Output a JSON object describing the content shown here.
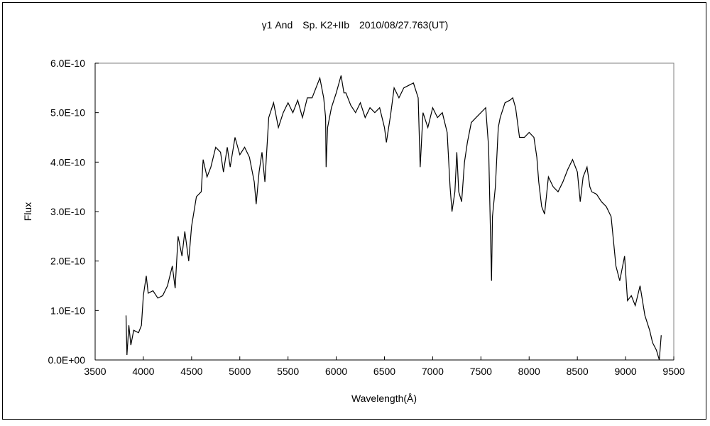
{
  "chart_data": {
    "type": "line",
    "title": "γ1 And　Sp. K2+IIb　2010/08/27.763(UT)",
    "xlabel": "Wavelength(Å)",
    "ylabel": "Flux",
    "xlim": [
      3500,
      9500
    ],
    "ylim": [
      0,
      6e-10
    ],
    "xticks": [
      3500,
      4000,
      4500,
      5000,
      5500,
      6000,
      6500,
      7000,
      7500,
      8000,
      8500,
      9000,
      9500
    ],
    "xtick_labels": [
      "3500",
      "4000",
      "4500",
      "5000",
      "5500",
      "6000",
      "6500",
      "7000",
      "7500",
      "8000",
      "8500",
      "9000",
      "9500"
    ],
    "yticks": [
      0,
      1e-10,
      2e-10,
      3e-10,
      4e-10,
      5e-10,
      6e-10
    ],
    "ytick_labels": [
      "0.0E+00",
      "1.0E-10",
      "2.0E-10",
      "3.0E-10",
      "4.0E-10",
      "5.0E-10",
      "6.0E-10"
    ],
    "grid": false,
    "legend": "none",
    "line_color": "#000000",
    "series": [
      {
        "x": [
          3820,
          3830,
          3850,
          3870,
          3900,
          3950,
          3980,
          4000,
          4030,
          4050,
          4100,
          4150,
          4200,
          4250,
          4300,
          4330,
          4360,
          4400,
          4430,
          4470,
          4500,
          4550,
          4600,
          4620,
          4660,
          4700,
          4750,
          4800,
          4830,
          4870,
          4900,
          4950,
          5000,
          5050,
          5100,
          5150,
          5170,
          5200,
          5230,
          5260,
          5300,
          5350,
          5400,
          5450,
          5500,
          5550,
          5600,
          5650,
          5700,
          5750,
          5800,
          5830,
          5870,
          5890,
          5895,
          5910,
          5950,
          6000,
          6050,
          6080,
          6100,
          6150,
          6200,
          6250,
          6300,
          6350,
          6400,
          6450,
          6500,
          6520,
          6563,
          6600,
          6650,
          6700,
          6750,
          6800,
          6850,
          6870,
          6900,
          6950,
          7000,
          7050,
          7100,
          7150,
          7180,
          7200,
          7230,
          7250,
          7270,
          7300,
          7330,
          7360,
          7400,
          7450,
          7500,
          7550,
          7580,
          7600,
          7610,
          7620,
          7650,
          7680,
          7700,
          7750,
          7800,
          7830,
          7860,
          7900,
          7950,
          8000,
          8050,
          8080,
          8100,
          8130,
          8160,
          8200,
          8250,
          8300,
          8350,
          8400,
          8450,
          8500,
          8530,
          8560,
          8600,
          8630,
          8650,
          8700,
          8750,
          8800,
          8850,
          8880,
          8900,
          8940,
          8990,
          9020,
          9060,
          9100,
          9150,
          9200,
          9250,
          9280,
          9320,
          9350,
          9370
        ],
        "y": [
          9e-11,
          1e-11,
          7e-11,
          3e-11,
          6e-11,
          5.5e-11,
          7e-11,
          1.3e-10,
          1.7e-10,
          1.35e-10,
          1.4e-10,
          1.25e-10,
          1.3e-10,
          1.5e-10,
          1.9e-10,
          1.45e-10,
          2.5e-10,
          2.1e-10,
          2.6e-10,
          2e-10,
          2.7e-10,
          3.3e-10,
          3.4e-10,
          4.05e-10,
          3.7e-10,
          3.9e-10,
          4.3e-10,
          4.2e-10,
          3.8e-10,
          4.3e-10,
          3.9e-10,
          4.5e-10,
          4.15e-10,
          4.3e-10,
          4.1e-10,
          3.6e-10,
          3.15e-10,
          3.8e-10,
          4.2e-10,
          3.6e-10,
          4.9e-10,
          5.2e-10,
          4.7e-10,
          5e-10,
          5.2e-10,
          5e-10,
          5.25e-10,
          4.9e-10,
          5.3e-10,
          5.3e-10,
          5.55e-10,
          5.7e-10,
          5.3e-10,
          4.9e-10,
          3.9e-10,
          4.7e-10,
          5.1e-10,
          5.4e-10,
          5.75e-10,
          5.4e-10,
          5.4e-10,
          5.15e-10,
          5e-10,
          5.2e-10,
          4.9e-10,
          5.1e-10,
          5e-10,
          5.1e-10,
          4.7e-10,
          4.4e-10,
          4.95e-10,
          5.5e-10,
          5.3e-10,
          5.5e-10,
          5.55e-10,
          5.6e-10,
          5.3e-10,
          3.9e-10,
          5e-10,
          4.7e-10,
          5.1e-10,
          4.9e-10,
          5e-10,
          4.6e-10,
          3.5e-10,
          3e-10,
          3.4e-10,
          4.2e-10,
          3.4e-10,
          3.2e-10,
          4e-10,
          4.4e-10,
          4.8e-10,
          4.9e-10,
          5e-10,
          5.1e-10,
          4.3e-10,
          2.5e-10,
          1.6e-10,
          2.9e-10,
          3.5e-10,
          4.7e-10,
          4.9e-10,
          5.2e-10,
          5.25e-10,
          5.3e-10,
          5.1e-10,
          4.5e-10,
          4.5e-10,
          4.6e-10,
          4.5e-10,
          4.1e-10,
          3.6e-10,
          3.1e-10,
          2.95e-10,
          3.7e-10,
          3.5e-10,
          3.4e-10,
          3.6e-10,
          3.85e-10,
          4.05e-10,
          3.8e-10,
          3.2e-10,
          3.7e-10,
          3.9e-10,
          3.5e-10,
          3.4e-10,
          3.35e-10,
          3.2e-10,
          3.1e-10,
          2.9e-10,
          2.3e-10,
          1.9e-10,
          1.6e-10,
          2.1e-10,
          1.2e-10,
          1.3e-10,
          1.1e-10,
          1.5e-10,
          9e-11,
          6e-11,
          3.5e-11,
          2e-11,
          0.0,
          5e-11
        ]
      }
    ]
  }
}
